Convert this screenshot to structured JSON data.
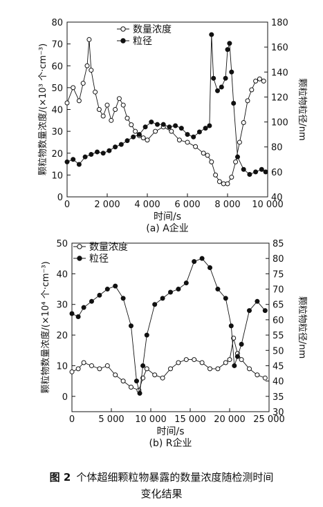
{
  "figure": {
    "label": "图 2",
    "caption_line1": "个体超细颗粒物暴露的数量浓度随检测时间",
    "caption_line2": "变化结果"
  },
  "chart_data": [
    {
      "id": "A",
      "type": "scatter",
      "subtitle": "(a) A企业",
      "xlabel": "时间/s",
      "ylabel_left": "颗粒物数量浓度/(×10³ 个·cm⁻³)",
      "ylabel_right": "颗粒物粒径/nm",
      "xlim": [
        0,
        10000
      ],
      "ylim_left": [
        0,
        80
      ],
      "ylim_right": [
        40,
        180
      ],
      "x_ticks": [
        0,
        2000,
        4000,
        6000,
        8000,
        10000
      ],
      "x_tick_labels": [
        "0",
        "2 000",
        "4 000",
        "6 000",
        "8 000",
        "10 000"
      ],
      "y_left_ticks": [
        0,
        10,
        20,
        30,
        40,
        50,
        60,
        70,
        80
      ],
      "y_right_ticks": [
        40,
        60,
        80,
        100,
        120,
        140,
        160,
        180
      ],
      "legend": {
        "placement": "top-center"
      },
      "series": [
        {
          "name": "数量浓度",
          "marker": "open-circle",
          "axis": "left",
          "x": [
            0,
            300,
            600,
            800,
            1000,
            1100,
            1200,
            1400,
            1600,
            1800,
            2000,
            2200,
            2400,
            2600,
            2800,
            3000,
            3200,
            3400,
            3600,
            3800,
            4000,
            4400,
            4800,
            5200,
            5600,
            6000,
            6400,
            6800,
            7000,
            7200,
            7400,
            7600,
            7800,
            8000,
            8200,
            8400,
            8600,
            8800,
            9000,
            9200,
            9400,
            9600,
            9800
          ],
          "y": [
            43,
            50,
            44,
            52,
            60,
            72,
            58,
            48,
            40,
            37,
            42,
            35,
            40,
            45,
            42,
            36,
            33,
            30,
            28,
            27,
            26,
            30,
            32,
            30,
            26,
            25,
            23,
            20,
            19,
            16,
            10,
            7,
            6,
            6,
            9,
            16,
            25,
            34,
            44,
            49,
            53,
            54,
            53
          ]
        },
        {
          "name": "粒径",
          "marker": "filled-circle",
          "axis": "right",
          "x": [
            0,
            300,
            600,
            900,
            1200,
            1500,
            1800,
            2100,
            2400,
            2700,
            3000,
            3300,
            3600,
            3900,
            4200,
            4500,
            4800,
            5100,
            5400,
            5700,
            6000,
            6300,
            6600,
            6900,
            7100,
            7200,
            7300,
            7500,
            7700,
            7900,
            8000,
            8100,
            8200,
            8300,
            8500,
            8800,
            9100,
            9400,
            9700,
            9900
          ],
          "y": [
            68,
            70,
            66,
            72,
            74,
            76,
            75,
            77,
            80,
            82,
            85,
            88,
            90,
            96,
            100,
            98,
            98,
            96,
            97,
            95,
            90,
            88,
            92,
            95,
            97,
            170,
            135,
            125,
            128,
            135,
            158,
            163,
            140,
            115,
            72,
            62,
            58,
            60,
            62,
            60
          ]
        }
      ]
    },
    {
      "id": "R",
      "type": "scatter",
      "subtitle": "(b) R企业",
      "xlabel": "时间/s",
      "ylabel_left": "颗粒物数量浓度/(×10⁴ 个·cm⁻³)",
      "ylabel_right": "颗粒物粒径/nm",
      "xlim": [
        0,
        25000
      ],
      "ylim_left": [
        -5,
        50
      ],
      "ylim_right": [
        30,
        85
      ],
      "x_ticks": [
        0,
        5000,
        10000,
        15000,
        20000,
        25000
      ],
      "x_tick_labels": [
        "0",
        "5 000",
        "10 000",
        "15 000",
        "20 000",
        "25 000"
      ],
      "y_left_ticks": [
        0,
        10,
        20,
        30,
        40,
        50
      ],
      "y_right_ticks": [
        30,
        35,
        40,
        45,
        50,
        55,
        60,
        65,
        70,
        75,
        80,
        85
      ],
      "legend": {
        "placement": "top-left"
      },
      "series": [
        {
          "name": "数量浓度",
          "marker": "open-circle",
          "axis": "left",
          "x": [
            0,
            800,
            1500,
            2500,
            3500,
            4500,
            5500,
            6500,
            7500,
            8500,
            9000,
            9500,
            10500,
            11500,
            12500,
            13500,
            14500,
            15500,
            16500,
            17500,
            18500,
            19500,
            20000,
            20500,
            21000,
            21500,
            22500,
            23500,
            24500
          ],
          "y": [
            8,
            9,
            11,
            10,
            9,
            10,
            7,
            5,
            3,
            2,
            6,
            9,
            7,
            6,
            9,
            11,
            12,
            12,
            11,
            9,
            9,
            11,
            12,
            19,
            14,
            12,
            9,
            7,
            6
          ]
        },
        {
          "name": "粒径",
          "marker": "filled-circle",
          "axis": "right",
          "x": [
            0,
            800,
            1500,
            2500,
            3500,
            4500,
            5500,
            6500,
            7500,
            8200,
            8600,
            9000,
            9500,
            10500,
            11500,
            12500,
            13500,
            14500,
            15500,
            16500,
            17500,
            18500,
            19500,
            20200,
            20600,
            21000,
            21500,
            22500,
            23500,
            24500
          ],
          "y": [
            62,
            61,
            64,
            66,
            68,
            70,
            71,
            67,
            58,
            40,
            36,
            45,
            55,
            65,
            67,
            69,
            70,
            72,
            79,
            80,
            77,
            70,
            67,
            58,
            45,
            48,
            52,
            63,
            66,
            63
          ]
        }
      ]
    }
  ]
}
